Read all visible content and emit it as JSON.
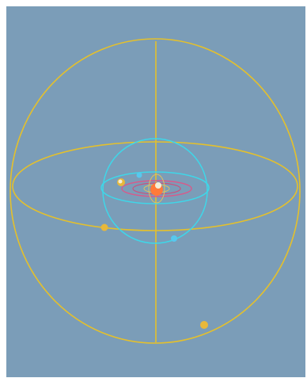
{
  "scene": {
    "background_color": "#7b9db8",
    "frame_color": "#ffffff",
    "colors": {
      "outer_sphere": "#e4c02c",
      "middle_sphere": "#3fd6e8",
      "inner_orbit": "#d85a8a",
      "core_orbit": "#e0c060",
      "center_sphere": "#ff7a3a",
      "marker_yellow": "#e8b83a",
      "marker_cyan": "#57c8ee",
      "marker_white": "#f4efd8"
    },
    "shells": [
      {
        "name": "outer-sphere",
        "color_key": "outer_sphere",
        "markers": 3
      },
      {
        "name": "middle-sphere",
        "color_key": "middle_sphere",
        "markers": 2
      },
      {
        "name": "inner-orbit",
        "color_key": "inner_orbit",
        "markers": 0
      }
    ]
  }
}
